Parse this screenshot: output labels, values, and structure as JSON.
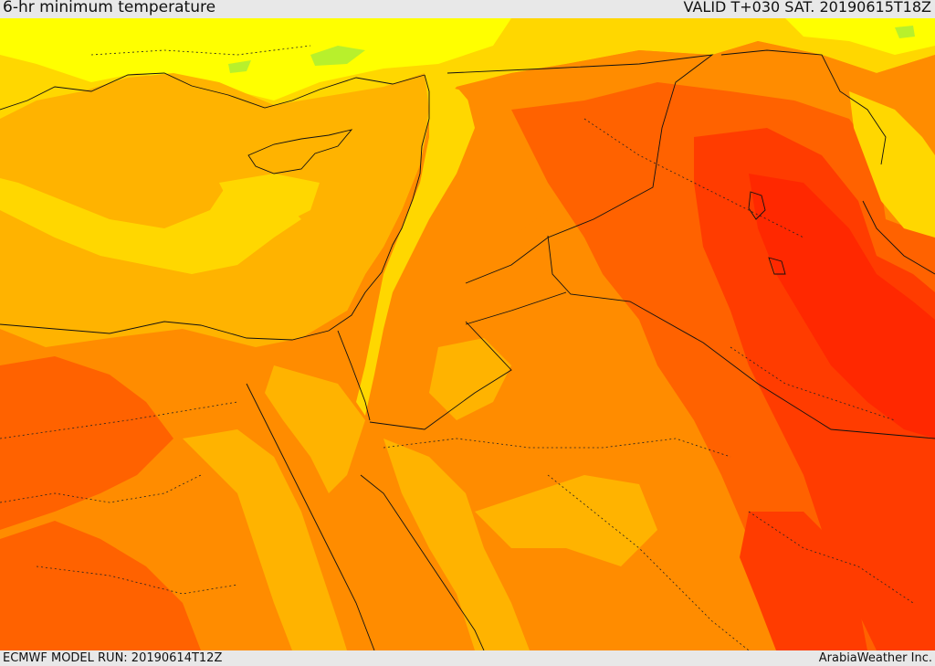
{
  "header": {
    "title": "6-hr minimum temperature",
    "valid": "VALID T+030 SAT. 20190615T18Z"
  },
  "footer": {
    "model_run": "ECMWF MODEL RUN: 20190614T12Z",
    "credit": "ArabiaWeather Inc."
  },
  "map": {
    "region": "Eastern Mediterranean / Levant",
    "palette": {
      "light_green": "#b8f02c",
      "yellow": "#ffff00",
      "gold": "#ffd700",
      "light_orange": "#ffb300",
      "orange": "#ff8c00",
      "dark_orange": "#ff6200",
      "red_orange": "#ff3c00",
      "red": "#ff2800"
    }
  }
}
